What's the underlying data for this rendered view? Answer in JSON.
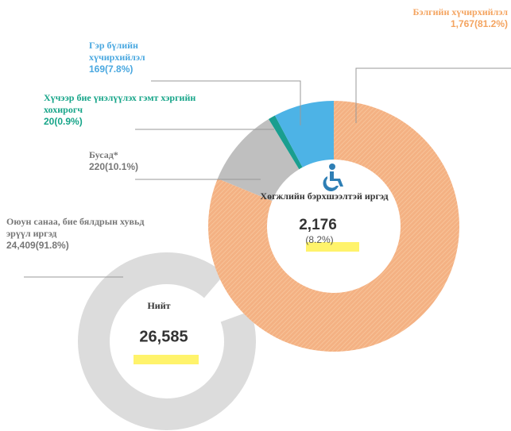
{
  "chart_data": [
    {
      "type": "donut",
      "title": "Хөгжлийн бэрхшээлтэй иргэд",
      "total": 2176,
      "total_label": "2,176",
      "share": 8.2,
      "share_label": "(8.2%)",
      "categories": [
        "Бэлгийн хүчирхийлэл",
        "Бусад*",
        "Хүчээр бие үнэлүүлэх гэмт хэргийн хохирогч",
        "Гэр бүлийн хүчирхийлэл"
      ],
      "values": [
        1767,
        220,
        20,
        169
      ],
      "value_labels": [
        "1,767(81.2%)",
        "220(10.1%)",
        "20(0.9%)",
        "169(7.8%)"
      ],
      "colors": [
        "#f4b183",
        "#bfbfbf",
        "#1a9e8f",
        "#4db3e6"
      ]
    },
    {
      "type": "donut",
      "title": "Нийт",
      "total": 26585,
      "total_label": "26,585",
      "categories": [
        "Оюун санаа, бие бялдрын хувьд эрүүл иргэд"
      ],
      "values": [
        24409
      ],
      "value_labels": [
        "24,409(91.8%)"
      ],
      "colors": [
        "#dcdcdc"
      ]
    }
  ]
}
